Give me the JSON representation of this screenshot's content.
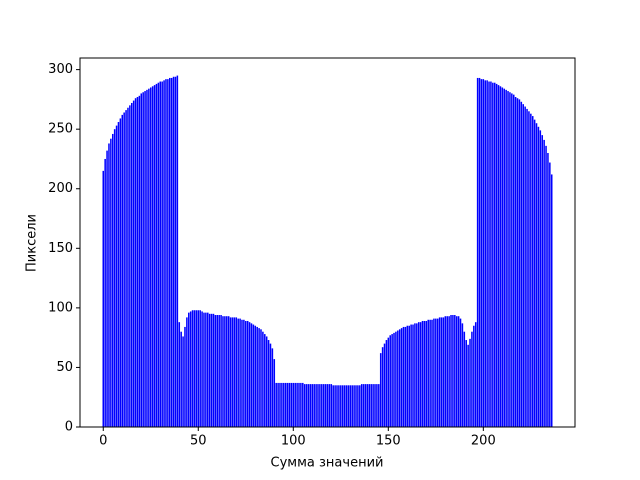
{
  "chart_data": {
    "type": "bar",
    "xlabel": "Сумма значений",
    "ylabel": "Пиксели",
    "color": "#0000ff",
    "bar_width": 0.8,
    "xlim": [
      -12.24,
      248.24
    ],
    "ylim": [
      0,
      309.75
    ],
    "xticks": [
      0,
      50,
      100,
      150,
      200
    ],
    "yticks": [
      0,
      50,
      100,
      150,
      200,
      250,
      300
    ],
    "x": [
      0,
      1,
      2,
      3,
      4,
      5,
      6,
      7,
      8,
      9,
      10,
      11,
      12,
      13,
      14,
      15,
      16,
      17,
      18,
      19,
      20,
      21,
      22,
      23,
      24,
      25,
      26,
      27,
      28,
      29,
      30,
      31,
      32,
      33,
      34,
      35,
      36,
      37,
      38,
      39,
      40,
      41,
      42,
      43,
      44,
      45,
      46,
      47,
      48,
      49,
      50,
      51,
      52,
      53,
      54,
      55,
      56,
      57,
      58,
      59,
      60,
      61,
      62,
      63,
      64,
      65,
      66,
      67,
      68,
      69,
      70,
      71,
      72,
      73,
      74,
      75,
      76,
      77,
      78,
      79,
      80,
      81,
      82,
      83,
      84,
      85,
      86,
      87,
      88,
      89,
      90,
      91,
      92,
      93,
      94,
      95,
      96,
      97,
      98,
      99,
      100,
      101,
      102,
      103,
      104,
      105,
      106,
      107,
      108,
      109,
      110,
      111,
      112,
      113,
      114,
      115,
      116,
      117,
      118,
      119,
      120,
      121,
      122,
      123,
      124,
      125,
      126,
      127,
      128,
      129,
      130,
      131,
      132,
      133,
      134,
      135,
      136,
      137,
      138,
      139,
      140,
      141,
      142,
      143,
      144,
      145,
      146,
      147,
      148,
      149,
      150,
      151,
      152,
      153,
      154,
      155,
      156,
      157,
      158,
      159,
      160,
      161,
      162,
      163,
      164,
      165,
      166,
      167,
      168,
      169,
      170,
      171,
      172,
      173,
      174,
      175,
      176,
      177,
      178,
      179,
      180,
      181,
      182,
      183,
      184,
      185,
      186,
      187,
      188,
      189,
      190,
      191,
      192,
      193,
      194,
      195,
      196,
      197,
      198,
      199,
      200,
      201,
      202,
      203,
      204,
      205,
      206,
      207,
      208,
      209,
      210,
      211,
      212,
      213,
      214,
      215,
      216,
      217,
      218,
      219,
      220,
      221,
      222,
      223,
      224,
      225,
      226,
      227,
      228,
      229,
      230,
      231,
      232,
      233,
      234,
      235,
      236
    ],
    "values": [
      215,
      225,
      232,
      238,
      242,
      246,
      250,
      253,
      256,
      259,
      262,
      264,
      266,
      268,
      270,
      272,
      274,
      276,
      277,
      278,
      280,
      281,
      282,
      283,
      284,
      285,
      286,
      287,
      288,
      289,
      290,
      290,
      291,
      292,
      292,
      293,
      293,
      294,
      294,
      295,
      88,
      80,
      76,
      84,
      92,
      96,
      97,
      98,
      98,
      98,
      98,
      98,
      97,
      96,
      96,
      96,
      95,
      95,
      95,
      94,
      94,
      94,
      94,
      93,
      93,
      93,
      93,
      92,
      92,
      92,
      92,
      91,
      91,
      90,
      90,
      89,
      89,
      88,
      87,
      86,
      85,
      84,
      83,
      82,
      80,
      78,
      76,
      73,
      70,
      66,
      57,
      37,
      37,
      37,
      37,
      37,
      37,
      37,
      37,
      37,
      37,
      37,
      37,
      37,
      37,
      37,
      36,
      36,
      36,
      36,
      36,
      36,
      36,
      36,
      36,
      36,
      36,
      36,
      36,
      36,
      36,
      35,
      35,
      35,
      35,
      35,
      35,
      35,
      35,
      35,
      35,
      35,
      35,
      35,
      35,
      35,
      36,
      36,
      36,
      36,
      36,
      36,
      36,
      36,
      36,
      36,
      62,
      67,
      70,
      73,
      75,
      77,
      78,
      79,
      80,
      81,
      82,
      83,
      84,
      84,
      85,
      85,
      86,
      86,
      87,
      87,
      88,
      88,
      89,
      89,
      89,
      90,
      90,
      90,
      91,
      91,
      91,
      92,
      92,
      92,
      93,
      93,
      93,
      94,
      94,
      94,
      93,
      93,
      91,
      87,
      80,
      73,
      69,
      74,
      80,
      85,
      88,
      293,
      293,
      292,
      292,
      291,
      291,
      290,
      290,
      289,
      289,
      288,
      287,
      286,
      285,
      284,
      283,
      282,
      281,
      280,
      279,
      277,
      276,
      275,
      273,
      271,
      269,
      267,
      265,
      263,
      261,
      258,
      255,
      252,
      249,
      245,
      241,
      236,
      230,
      222,
      212
    ]
  }
}
